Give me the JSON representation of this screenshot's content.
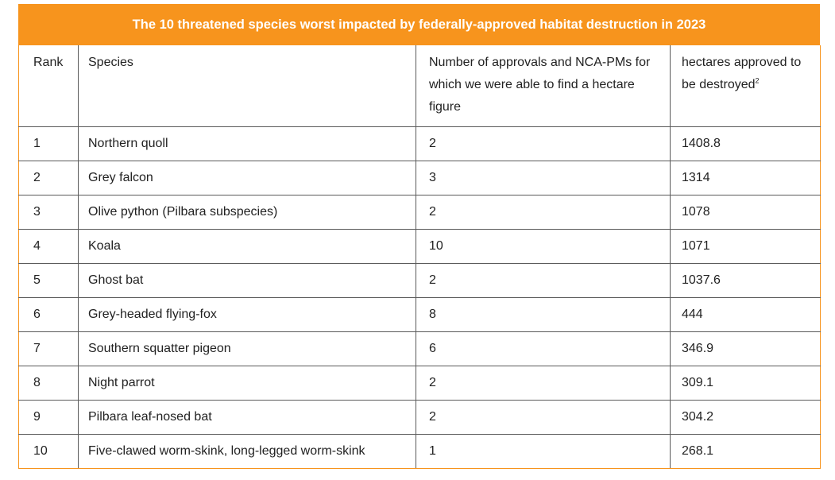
{
  "title": "The 10 threatened species worst impacted by federally-approved habitat destruction in 2023",
  "headers": {
    "rank": "Rank",
    "species": "Species",
    "approvals": "Number of approvals and NCA-PMs for which we were able to find a hectare figure",
    "hectares": "hectares approved to be destroyed",
    "hectares_footnote": "2"
  },
  "rows": [
    {
      "rank": "1",
      "species": "Northern quoll",
      "approvals": "2",
      "hectares": "1408.8"
    },
    {
      "rank": "2",
      "species": "Grey falcon",
      "approvals": "3",
      "hectares": "1314"
    },
    {
      "rank": "3",
      "species": "Olive python (Pilbara subspecies)",
      "approvals": "2",
      "hectares": "1078"
    },
    {
      "rank": "4",
      "species": "Koala",
      "approvals": "10",
      "hectares": "1071"
    },
    {
      "rank": "5",
      "species": "Ghost bat",
      "approvals": "2",
      "hectares": "1037.6"
    },
    {
      "rank": "6",
      "species": "Grey-headed flying-fox",
      "approvals": "8",
      "hectares": "444"
    },
    {
      "rank": "7",
      "species": "Southern squatter pigeon",
      "approvals": "6",
      "hectares": "346.9"
    },
    {
      "rank": "8",
      "species": "Night parrot",
      "approvals": "2",
      "hectares": "309.1"
    },
    {
      "rank": "9",
      "species": "Pilbara leaf-nosed bat",
      "approvals": "2",
      "hectares": "304.2"
    },
    {
      "rank": "10",
      "species": "Five-clawed worm-skink, long-legged worm-skink",
      "approvals": "1",
      "hectares": "268.1"
    }
  ],
  "colors": {
    "accent": "#f7941d",
    "border": "#5a5a5a",
    "text": "#222222"
  }
}
